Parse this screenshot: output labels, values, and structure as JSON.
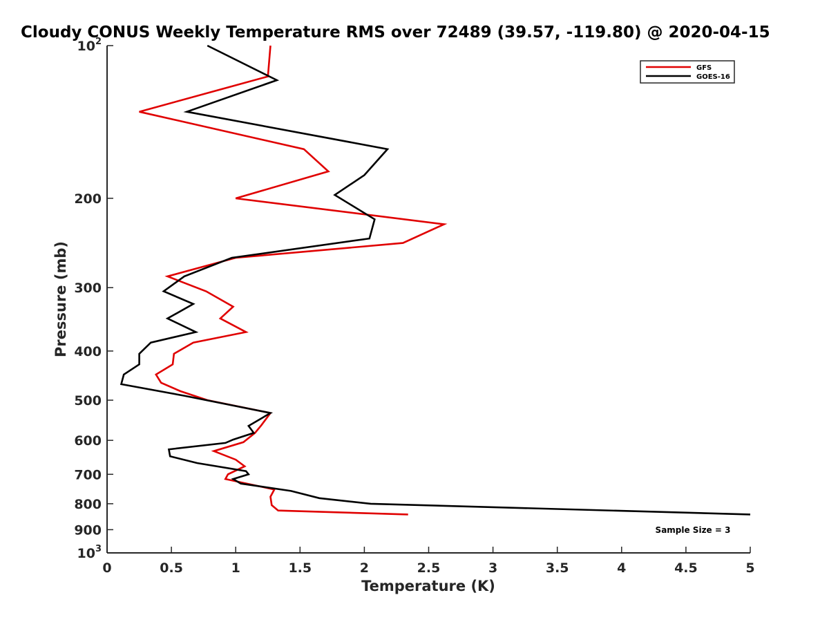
{
  "chart_data": {
    "type": "line",
    "title": "Cloudy CONUS Weekly Temperature RMS over 72489 (39.57, -119.80) @ 2020-04-15",
    "xlabel": "Temperature (K)",
    "ylabel": "Pressure (mb)",
    "xlim": [
      0,
      5
    ],
    "ylim": [
      100,
      1000
    ],
    "y_scale": "log",
    "y_reversed": true,
    "grid": false,
    "legend_position": "top-right",
    "x_ticks": [
      "0",
      "0.5",
      "1",
      "1.5",
      "2",
      "2.5",
      "3",
      "3.5",
      "4",
      "4.5",
      "5"
    ],
    "y_ticks": [
      {
        "value": 100,
        "base": "10",
        "exp": "2"
      },
      {
        "value": 200,
        "label": "200"
      },
      {
        "value": 300,
        "label": "300"
      },
      {
        "value": 400,
        "label": "400"
      },
      {
        "value": 500,
        "label": "500"
      },
      {
        "value": 600,
        "label": "600"
      },
      {
        "value": 700,
        "label": "700"
      },
      {
        "value": 800,
        "label": "800"
      },
      {
        "value": 900,
        "label": "900"
      },
      {
        "value": 1000,
        "base": "10",
        "exp": "3"
      }
    ],
    "annotation": "Sample Size = 3",
    "series": [
      {
        "name": "GFS",
        "color": "#e00000",
        "points": [
          [
            1.27,
            100
          ],
          [
            1.25,
            115
          ],
          [
            0.25,
            135
          ],
          [
            1.53,
            160
          ],
          [
            1.72,
            177
          ],
          [
            1.0,
            200
          ],
          [
            2.62,
            225
          ],
          [
            2.3,
            245
          ],
          [
            1.0,
            262
          ],
          [
            0.47,
            285
          ],
          [
            0.77,
            305
          ],
          [
            0.98,
            327
          ],
          [
            0.88,
            345
          ],
          [
            1.08,
            367
          ],
          [
            0.67,
            385
          ],
          [
            0.52,
            405
          ],
          [
            0.51,
            425
          ],
          [
            0.38,
            445
          ],
          [
            0.42,
            462
          ],
          [
            0.57,
            480
          ],
          [
            0.78,
            500
          ],
          [
            1.27,
            530
          ],
          [
            1.2,
            560
          ],
          [
            1.15,
            580
          ],
          [
            1.06,
            605
          ],
          [
            0.83,
            630
          ],
          [
            1.0,
            655
          ],
          [
            1.07,
            675
          ],
          [
            0.94,
            700
          ],
          [
            0.92,
            715
          ],
          [
            1.3,
            750
          ],
          [
            1.27,
            775
          ],
          [
            1.28,
            805
          ],
          [
            1.33,
            825
          ],
          [
            2.34,
            840
          ]
        ]
      },
      {
        "name": "GOES-16",
        "color": "#000000",
        "points": [
          [
            0.78,
            100
          ],
          [
            1.32,
            117
          ],
          [
            0.62,
            135
          ],
          [
            2.18,
            160
          ],
          [
            2.0,
            180
          ],
          [
            1.77,
            197
          ],
          [
            2.08,
            220
          ],
          [
            2.04,
            240
          ],
          [
            0.97,
            262
          ],
          [
            0.6,
            285
          ],
          [
            0.44,
            305
          ],
          [
            0.67,
            323
          ],
          [
            0.47,
            345
          ],
          [
            0.69,
            367
          ],
          [
            0.34,
            385
          ],
          [
            0.25,
            405
          ],
          [
            0.25,
            425
          ],
          [
            0.13,
            445
          ],
          [
            0.11,
            465
          ],
          [
            0.6,
            490
          ],
          [
            1.27,
            530
          ],
          [
            1.1,
            562
          ],
          [
            1.14,
            580
          ],
          [
            0.98,
            598
          ],
          [
            0.92,
            607
          ],
          [
            0.48,
            625
          ],
          [
            0.49,
            645
          ],
          [
            0.7,
            665
          ],
          [
            1.08,
            690
          ],
          [
            1.1,
            700
          ],
          [
            0.98,
            715
          ],
          [
            1.04,
            730
          ],
          [
            1.43,
            755
          ],
          [
            1.65,
            780
          ],
          [
            2.05,
            800
          ],
          [
            5.0,
            840
          ]
        ]
      }
    ]
  }
}
